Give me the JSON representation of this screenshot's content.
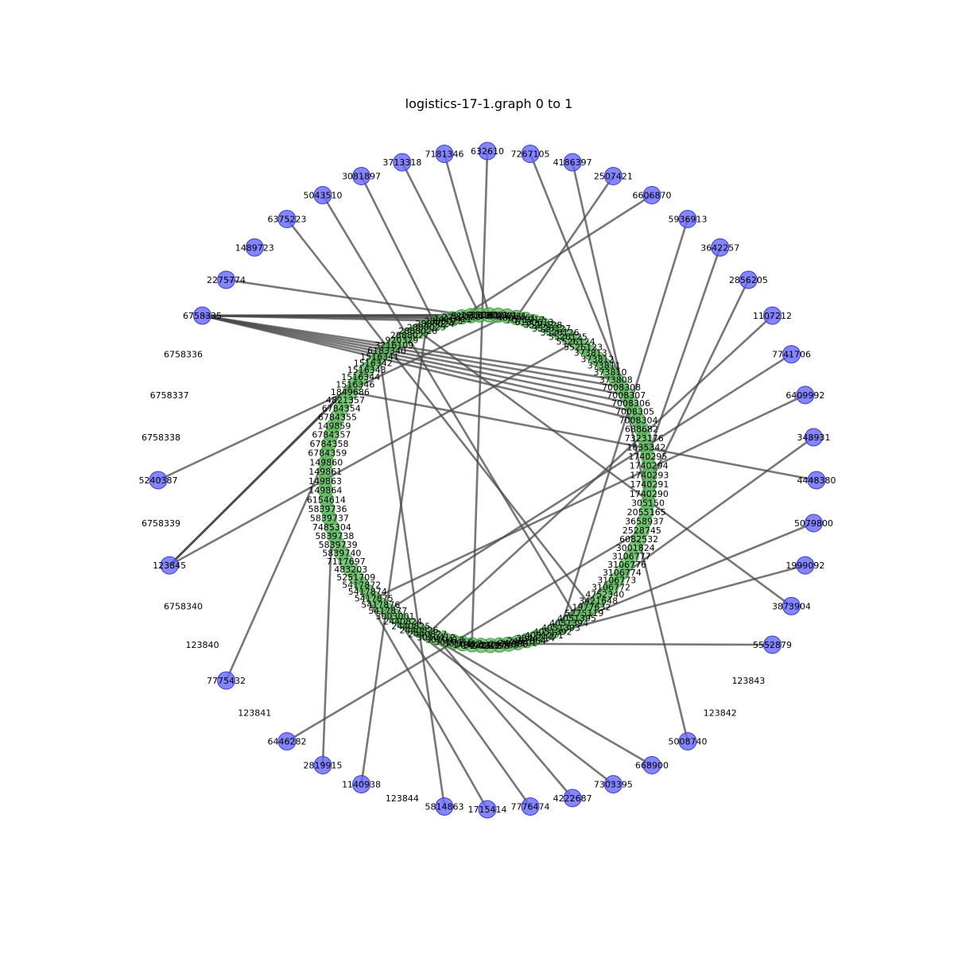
{
  "title": "logistics-17-1.graph 0 to 1",
  "colors": {
    "outer_node": "#6666ff",
    "inner_node": "#5cb85c",
    "edge": "#4a4a4a"
  },
  "outer_nodes": [
    {
      "label": "632610",
      "node": true
    },
    {
      "label": "7267105",
      "node": true
    },
    {
      "label": "4186397",
      "node": true
    },
    {
      "label": "2507421",
      "node": true
    },
    {
      "label": "6606870",
      "node": true
    },
    {
      "label": "5936913",
      "node": true
    },
    {
      "label": "3642257",
      "node": true
    },
    {
      "label": "2856205",
      "node": true
    },
    {
      "label": "1107212",
      "node": true
    },
    {
      "label": "7741706",
      "node": true
    },
    {
      "label": "6409992",
      "node": true
    },
    {
      "label": "348931",
      "node": true
    },
    {
      "label": "4448380",
      "node": true
    },
    {
      "label": "5079800",
      "node": true
    },
    {
      "label": "1999092",
      "node": true
    },
    {
      "label": "3873904",
      "node": true
    },
    {
      "label": "5552879",
      "node": true
    },
    {
      "label": "123843",
      "node": false
    },
    {
      "label": "123842",
      "node": false
    },
    {
      "label": "5008740",
      "node": true
    },
    {
      "label": "668900",
      "node": true
    },
    {
      "label": "7303395",
      "node": true
    },
    {
      "label": "4222687",
      "node": true
    },
    {
      "label": "7776474",
      "node": true
    },
    {
      "label": "1715414",
      "node": true
    },
    {
      "label": "5814863",
      "node": true
    },
    {
      "label": "123844",
      "node": false
    },
    {
      "label": "1140938",
      "node": true
    },
    {
      "label": "2819915",
      "node": true
    },
    {
      "label": "6446282",
      "node": true
    },
    {
      "label": "123841",
      "node": false
    },
    {
      "label": "7775432",
      "node": true
    },
    {
      "label": "123840",
      "node": false
    },
    {
      "label": "6758340",
      "node": false
    },
    {
      "label": "123845",
      "node": true
    },
    {
      "label": "6758339",
      "node": false
    },
    {
      "label": "5240387",
      "node": true
    },
    {
      "label": "6758338",
      "node": false
    },
    {
      "label": "6758337",
      "node": false
    },
    {
      "label": "6758336",
      "node": false
    },
    {
      "label": "6758335",
      "node": true
    },
    {
      "label": "2275774",
      "node": true
    },
    {
      "label": "1489723",
      "node": true
    },
    {
      "label": "6375223",
      "node": true
    },
    {
      "label": "5043510",
      "node": true
    },
    {
      "label": "3081897",
      "node": true
    },
    {
      "label": "3713318",
      "node": true
    },
    {
      "label": "7181346",
      "node": true
    }
  ],
  "inner_nodes": [
    "3526128",
    "3526127",
    "3526126",
    "5526125",
    "5526124",
    "5526123",
    "373813",
    "373812",
    "373811",
    "373810",
    "373808",
    "7008308",
    "7008307",
    "7008306",
    "7008305",
    "7008304",
    "688682",
    "7323176",
    "1635342",
    "1740295",
    "1740294",
    "1740293",
    "1740291",
    "1740290",
    "305150",
    "2055165",
    "3658937",
    "2528745",
    "6082532",
    "3001824",
    "3106777",
    "3106776",
    "3106774",
    "3106773",
    "3106772",
    "4752340",
    "3421648",
    "1977632",
    "5275119",
    "4051395",
    "4051394",
    "4051393",
    "4051392",
    "4051271",
    "3844214",
    "2481864",
    "2478801",
    "2478800",
    "2478799",
    "2478798",
    "1494212",
    "1494211",
    "3010417",
    "3010416",
    "3010413",
    "3010412",
    "2440827",
    "2440826",
    "2440825",
    "2440824",
    "3003001",
    "5417877",
    "5417876",
    "5417875",
    "5417874",
    "5417872",
    "5251709",
    "483203",
    "7117697",
    "5839740",
    "5839739",
    "5839738",
    "7485304",
    "5839737",
    "5839736",
    "6154614",
    "149864",
    "149863",
    "149861",
    "149860",
    "6784359",
    "6784358",
    "6784357",
    "149859",
    "6784355",
    "6784354",
    "4821357",
    "1849686",
    "1516346",
    "1516344",
    "1516343",
    "1516342",
    "1516341",
    "6183340",
    "3216109",
    "920329",
    "2888027",
    "2888026",
    "2888025",
    "2888024",
    "2888023",
    "4416411",
    "2222223",
    "5113131",
    "1616161",
    "1500001",
    "1900001",
    "3300331",
    "4804461",
    "7071717",
    "6130613"
  ],
  "edges": [
    [
      40,
      100
    ],
    [
      40,
      101
    ],
    [
      40,
      102
    ],
    [
      40,
      103
    ],
    [
      40,
      104
    ],
    [
      40,
      10
    ],
    [
      40,
      11
    ],
    [
      40,
      12
    ],
    [
      40,
      13
    ],
    [
      40,
      14
    ],
    [
      40,
      15
    ],
    [
      40,
      106
    ],
    [
      34,
      90
    ],
    [
      34,
      91
    ],
    [
      34,
      92
    ],
    [
      34,
      93
    ],
    [
      34,
      4
    ],
    [
      36,
      107
    ],
    [
      0,
      51
    ],
    [
      1,
      17
    ],
    [
      2,
      24
    ],
    [
      3,
      108
    ],
    [
      4,
      102
    ],
    [
      5,
      41
    ],
    [
      6,
      19
    ],
    [
      7,
      22
    ],
    [
      8,
      56
    ],
    [
      9,
      61
    ],
    [
      10,
      63
    ],
    [
      11,
      44
    ],
    [
      12,
      87
    ],
    [
      13,
      45
    ],
    [
      14,
      46
    ],
    [
      15,
      97
    ],
    [
      16,
      52
    ],
    [
      19,
      28
    ],
    [
      20,
      57
    ],
    [
      21,
      59
    ],
    [
      22,
      55
    ],
    [
      23,
      60
    ],
    [
      24,
      67
    ],
    [
      25,
      92
    ],
    [
      27,
      98
    ],
    [
      28,
      72
    ],
    [
      29,
      27
    ],
    [
      31,
      80
    ],
    [
      41,
      103
    ],
    [
      43,
      37
    ],
    [
      44,
      39
    ],
    [
      45,
      99
    ],
    [
      46,
      104
    ],
    [
      47,
      105
    ]
  ]
}
